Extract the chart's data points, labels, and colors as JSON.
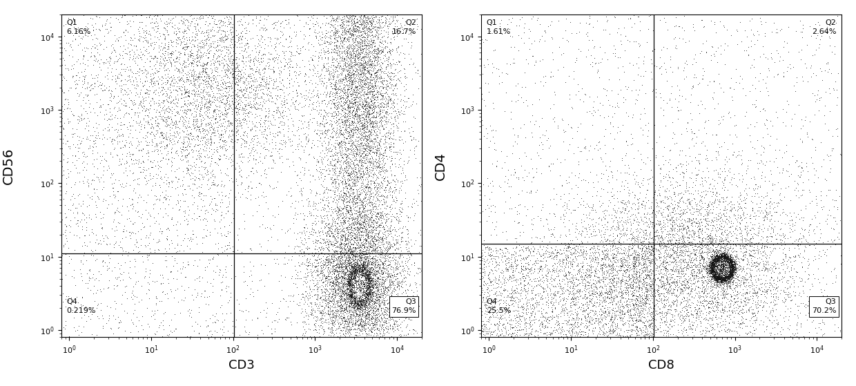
{
  "plot1": {
    "xlabel": "CD3",
    "ylabel": "CD56",
    "quadrant_line_x": 102,
    "quadrant_line_y": 11,
    "xlim": [
      0.8,
      20000
    ],
    "ylim": [
      0.8,
      20000
    ],
    "Q1_label": "Q1\n6.16%",
    "Q2_label": "Q2\n16.7%",
    "Q3_label": "Q3\n76.9%",
    "Q4_label": "Q4\n0.219%"
  },
  "plot2": {
    "xlabel": "CD8",
    "ylabel": "CD4",
    "quadrant_line_x": 102,
    "quadrant_line_y": 15,
    "xlim": [
      0.8,
      20000
    ],
    "ylim": [
      0.8,
      20000
    ],
    "Q1_label": "Q1\n1.61%",
    "Q2_label": "Q2\n2.64%",
    "Q3_label": "Q3\n70.2%",
    "Q4_label": "Q4\n25.5%"
  },
  "dot_color": "#111111",
  "dot_size": 0.5,
  "dot_alpha": 0.7,
  "bg_color": "#ffffff",
  "font_size_axis_label": 13,
  "font_size_quadrant": 8,
  "font_size_ylabel": 14
}
